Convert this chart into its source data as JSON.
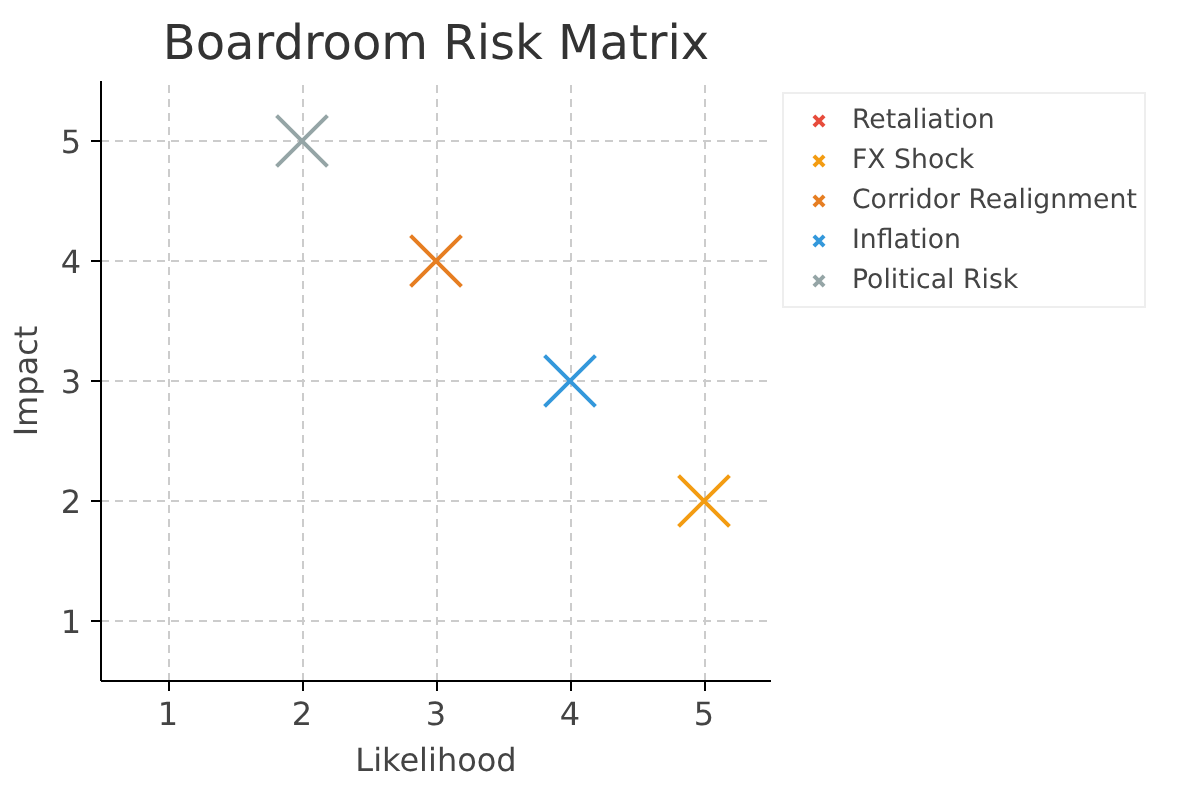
{
  "chart_data": {
    "type": "scatter",
    "title": "Boardroom Risk Matrix",
    "xlabel": "Likelihood",
    "ylabel": "Impact",
    "series": [
      {
        "name": "Retaliation",
        "color": "#e74c3c"
      },
      {
        "name": "FX Shock",
        "color": "#f39c12",
        "x": [
          5
        ],
        "values": [
          2
        ]
      },
      {
        "name": "Corridor Realignment",
        "color": "#e67e22",
        "x": [
          3
        ],
        "values": [
          4
        ]
      },
      {
        "name": "Inflation",
        "color": "#3498db",
        "x": [
          4
        ],
        "values": [
          3
        ]
      },
      {
        "name": "Political Risk",
        "color": "#95a5a6",
        "x": [
          2
        ],
        "values": [
          5
        ]
      }
    ],
    "xlim": [
      0.5,
      5.5
    ],
    "ylim": [
      0.5,
      5.5
    ],
    "xticks": [
      1,
      2,
      3,
      4,
      5
    ],
    "yticks": [
      1,
      2,
      3,
      4,
      5
    ],
    "grid": true,
    "legend": "top right",
    "marker": "cross"
  }
}
